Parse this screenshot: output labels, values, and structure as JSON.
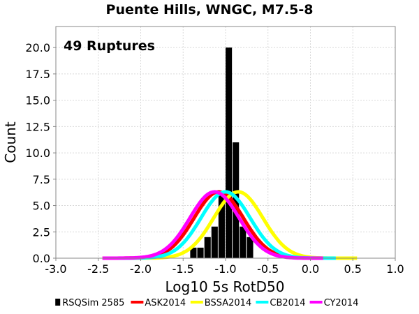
{
  "chart_data": {
    "type": "bar",
    "title": "Puente Hills, WNGC, M7.5-8",
    "annotation": "49 Ruptures",
    "xlabel": "Log10 5s RotD50",
    "ylabel": "Count",
    "xlim": [
      -3.0,
      1.0
    ],
    "ylim": [
      0.0,
      22.0
    ],
    "xticks": [
      "-3.0",
      "-2.5",
      "-2.0",
      "-1.5",
      "-1.0",
      "-0.5",
      "0.0",
      "0.5",
      "1.0"
    ],
    "yticks": [
      "0.0",
      "2.5",
      "5.0",
      "7.5",
      "10.0",
      "12.5",
      "15.0",
      "17.5",
      "20.0"
    ],
    "grid": true,
    "legend_position": "bottom",
    "histogram": {
      "name": "RSQSim 2585",
      "color": "#000000",
      "bin_width": 0.0833,
      "bins": [
        {
          "x": -1.375,
          "count": 1
        },
        {
          "x": -1.292,
          "count": 1
        },
        {
          "x": -1.208,
          "count": 2
        },
        {
          "x": -1.125,
          "count": 3
        },
        {
          "x": -1.042,
          "count": 6
        },
        {
          "x": -0.958,
          "count": 20
        },
        {
          "x": -0.875,
          "count": 11
        },
        {
          "x": -0.792,
          "count": 3
        },
        {
          "x": -0.708,
          "count": 2
        }
      ]
    },
    "series": [
      {
        "name": "ASK2014",
        "color": "#ff0000",
        "mean": -1.08,
        "sigma": 0.29,
        "xmin": -2.45,
        "xmax": 0.2
      },
      {
        "name": "BSSA2014",
        "color": "#ffff00",
        "mean": -0.85,
        "sigma": 0.29,
        "xmin": -2.2,
        "xmax": 0.55
      },
      {
        "name": "CB2014",
        "color": "#00ffff",
        "mean": -1.0,
        "sigma": 0.29,
        "xmin": -2.35,
        "xmax": 0.3
      },
      {
        "name": "CY2014",
        "color": "#ff00ff",
        "mean": -1.13,
        "sigma": 0.29,
        "xmin": -2.45,
        "xmax": 0.15
      }
    ],
    "curve_peak_count": 6.3
  }
}
